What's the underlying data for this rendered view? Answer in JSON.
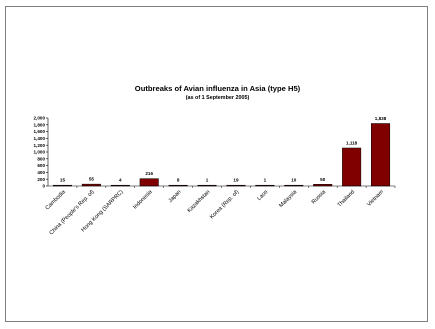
{
  "chart_data": {
    "type": "bar",
    "title": "Outbreaks of Avian influenza in Asia (type H5)",
    "subtitle": "(as of 1 September 2005)",
    "xlabel": "",
    "ylabel": "",
    "categories": [
      "Cambodia",
      "China (People's Rep. of)",
      "Hong Kong (SARPRC)",
      "Indonesia",
      "Japan",
      "Kazakhstan",
      "Korea (Rep. of)",
      "Laos",
      "Malaysia",
      "Russia",
      "Thailand",
      "Vietnam"
    ],
    "values": [
      15,
      55,
      4,
      216,
      8,
      1,
      19,
      1,
      10,
      50,
      1118,
      1838
    ],
    "data_labels": [
      "15",
      "55",
      "4",
      "216",
      "8",
      "1",
      "19",
      "1",
      "10",
      "50",
      "1,118",
      "1,838"
    ],
    "yticks": [
      "0",
      "200",
      "400",
      "600",
      "800",
      "1,000",
      "1,200",
      "1,400",
      "1,600",
      "1,800",
      "2,000"
    ],
    "ylim": [
      0,
      2000
    ],
    "bar_color": "#800000",
    "grid": false,
    "legend": "none"
  }
}
